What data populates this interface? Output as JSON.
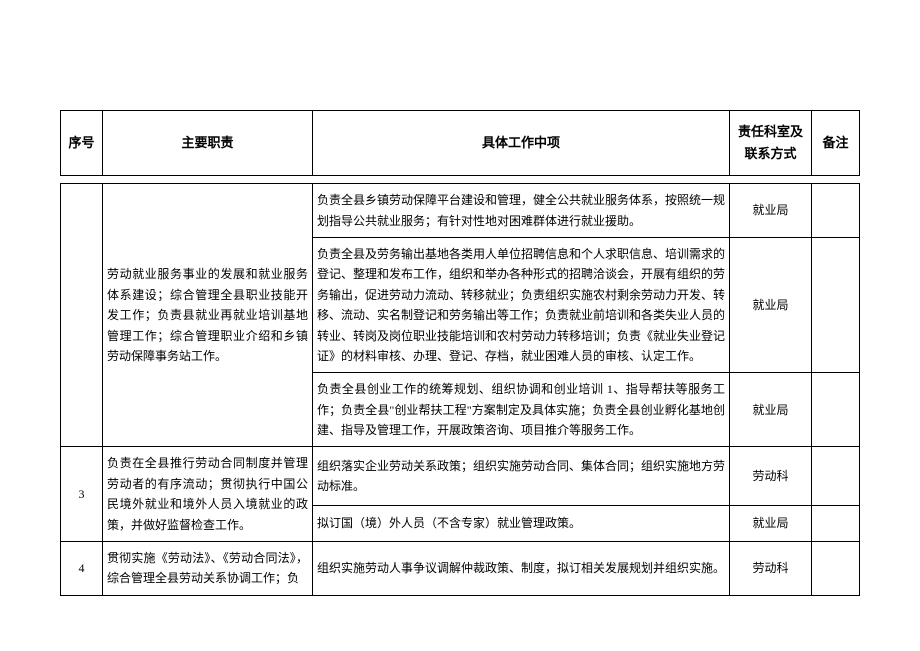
{
  "headers": {
    "seq": "序号",
    "duty": "主要职责",
    "detail": "具体工作中项",
    "dept": "责任科室及联系方式",
    "note": "备注"
  },
  "rows": [
    {
      "seq": "",
      "duty": "劳动就业服务事业的发展和就业服务体系建设；综合管理全县职业技能开发工作；负责县就业再就业培训基地管理工作；综合管理职业介绍和乡镇劳动保障事务站工作。",
      "details": [
        {
          "text": "负责全县乡镇劳动保障平台建设和管理，健全公共就业服务体系，按照统一规划指导公共就业服务；有针对性地对困难群体进行就业援助。",
          "dept": "就业局",
          "note": ""
        },
        {
          "text": "负责全县及劳务输出基地各类用人单位招聘信息和个人求职信息、培训需求的登记、整理和发布工作，组织和举办各种形式的招聘洽谈会，开展有组织的劳务输出，促进劳动力流动、转移就业；负责组织实施农村剩余劳动力开发、转移、流动、实名制登记和劳务输出等工作；负责就业前培训和各类失业人员的转业、转岗及岗位职业技能培训和农村劳动力转移培训；负责《就业失业登记证》的材料审核、办理、登记、存档，就业困难人员的审核、认定工作。",
          "dept": "就业局",
          "note": ""
        },
        {
          "text": "负责全县创业工作的统筹规划、组织协调和创业培训 1、指导帮扶等服务工作；负责全县\"创业帮扶工程\"方案制定及具体实施；负责全县创业孵化基地创建、指导及管理工作，开展政策咨询、项目推介等服务工作。",
          "dept": "就业局",
          "note": ""
        }
      ]
    },
    {
      "seq": "3",
      "duty": "负责在全县推行劳动合同制度并管理劳动者的有序流动；贯彻执行中国公民境外就业和境外人员入境就业的政策，并做好监督检查工作。",
      "details": [
        {
          "text": "组织落实企业劳动关系政策；组织实施劳动合同、集体合同；组织实施地方劳动标准。",
          "dept": "劳动科",
          "note": ""
        },
        {
          "text": "拟订国（境）外人员（不含专家）就业管理政策。",
          "dept": "就业局",
          "note": ""
        }
      ]
    },
    {
      "seq": "4",
      "duty": "贯彻实施《劳动法》、《劳动合同法》，综合管理全县劳动关系协调工作；负",
      "details": [
        {
          "text": "组织实施劳动人事争议调解仲裁政策、制度，拟订相关发展规划并组织实施。",
          "dept": "劳动科",
          "note": ""
        }
      ]
    }
  ]
}
